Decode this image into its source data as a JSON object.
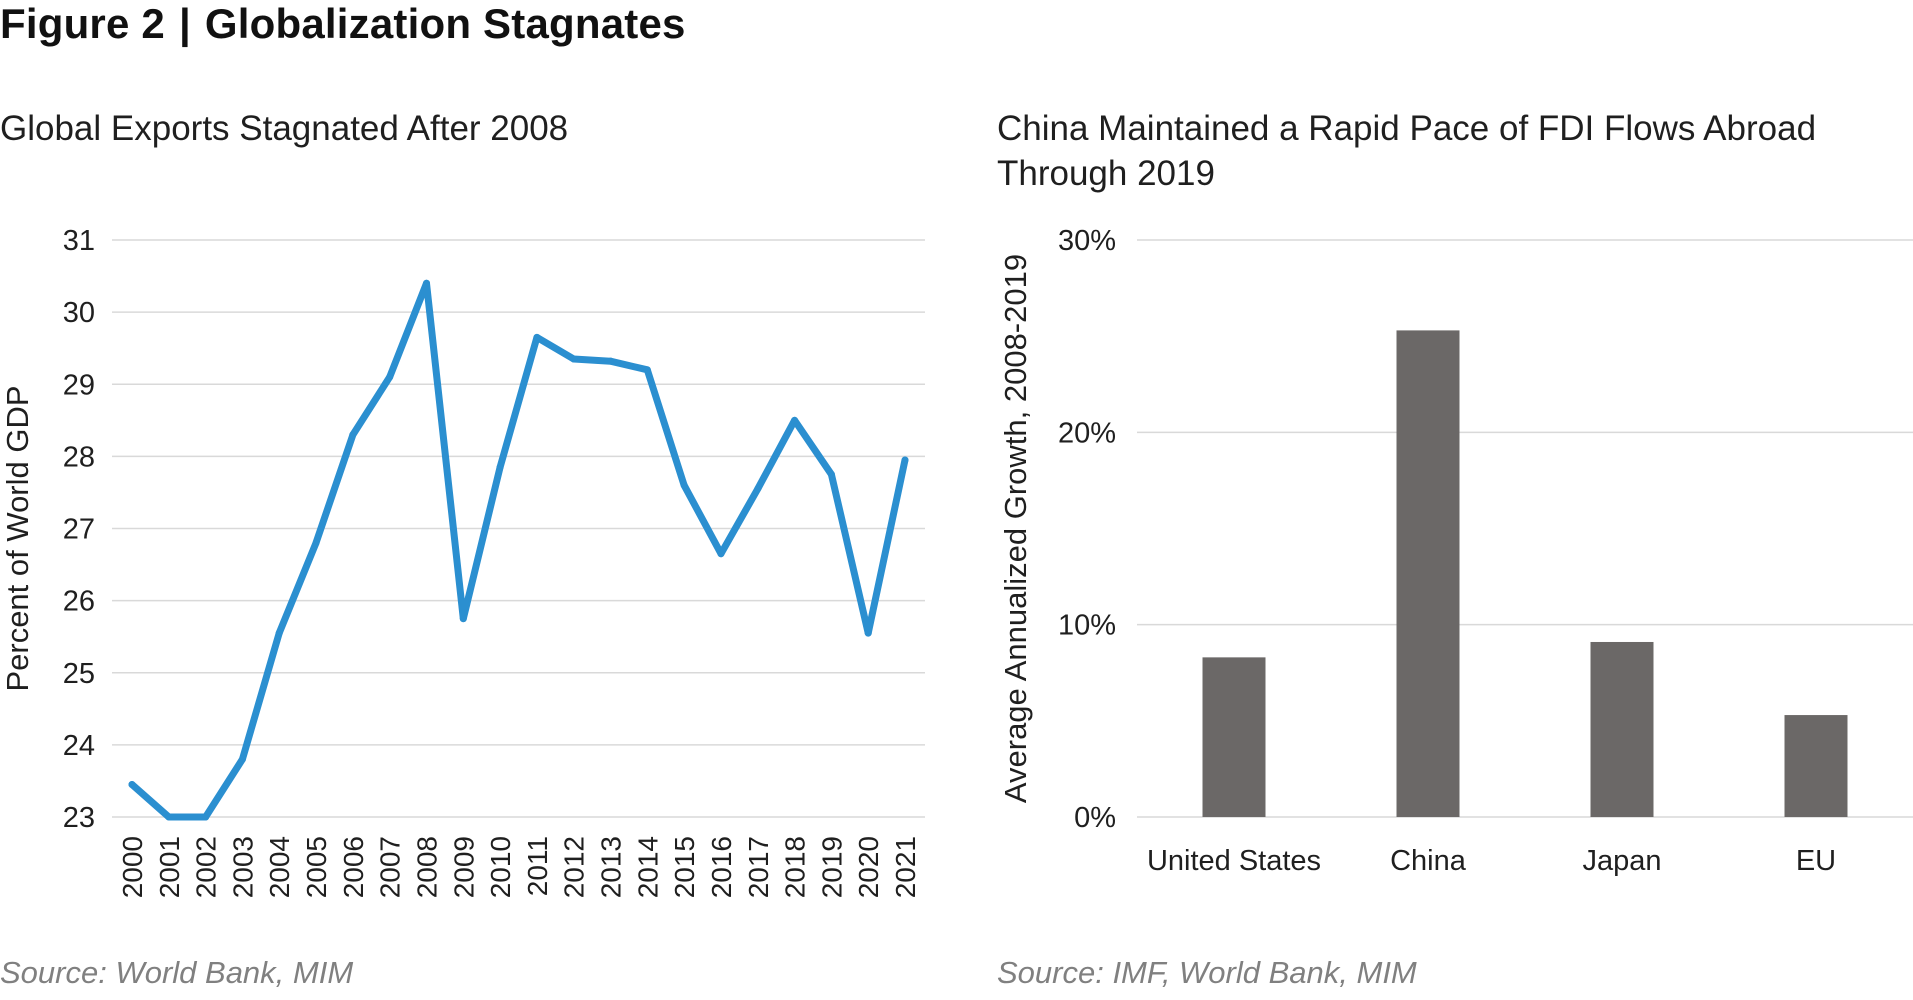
{
  "figure": {
    "label": "Figure 2",
    "separator": "|",
    "title": "Globalization Stagnates"
  },
  "chart_data": [
    {
      "type": "line",
      "title": "Global Exports Stagnated After 2008",
      "xlabel": "",
      "ylabel": "Percent of World GDP",
      "ylim": [
        23,
        31
      ],
      "yticks": [
        "23",
        "24",
        "25",
        "26",
        "27",
        "28",
        "29",
        "30",
        "31"
      ],
      "grid": true,
      "x": [
        "2000",
        "2001",
        "2002",
        "2003",
        "2004",
        "2005",
        "2006",
        "2007",
        "2008",
        "2009",
        "2010",
        "2011",
        "2012",
        "2013",
        "2014",
        "2015",
        "2016",
        "2017",
        "2018",
        "2019",
        "2020",
        "2021"
      ],
      "series": [
        {
          "name": "Global Exports",
          "color": "#2b8fd0",
          "values": [
            23.45,
            23.0,
            23.0,
            23.8,
            25.55,
            26.8,
            28.3,
            29.1,
            30.4,
            25.75,
            27.85,
            29.65,
            29.35,
            29.32,
            29.2,
            27.6,
            26.65,
            27.55,
            28.5,
            27.75,
            25.55,
            27.95
          ]
        }
      ],
      "source": "Source: World Bank, MIM"
    },
    {
      "type": "bar",
      "title": "China Maintained a Rapid Pace of FDI Flows Abroad Through 2019",
      "xlabel": "",
      "ylabel": "Average Annualized Growth, 2008-2019",
      "ylim": [
        0,
        30
      ],
      "yticks": [
        "0%",
        "10%",
        "20%",
        "30%"
      ],
      "grid": true,
      "categories": [
        "United States",
        "China",
        "Japan",
        "EU"
      ],
      "series": [
        {
          "name": "FDI growth",
          "color": "#6b6867",
          "values": [
            8.3,
            25.3,
            9.1,
            5.3
          ]
        }
      ],
      "source": "Source: IMF, World Bank, MIM"
    }
  ]
}
